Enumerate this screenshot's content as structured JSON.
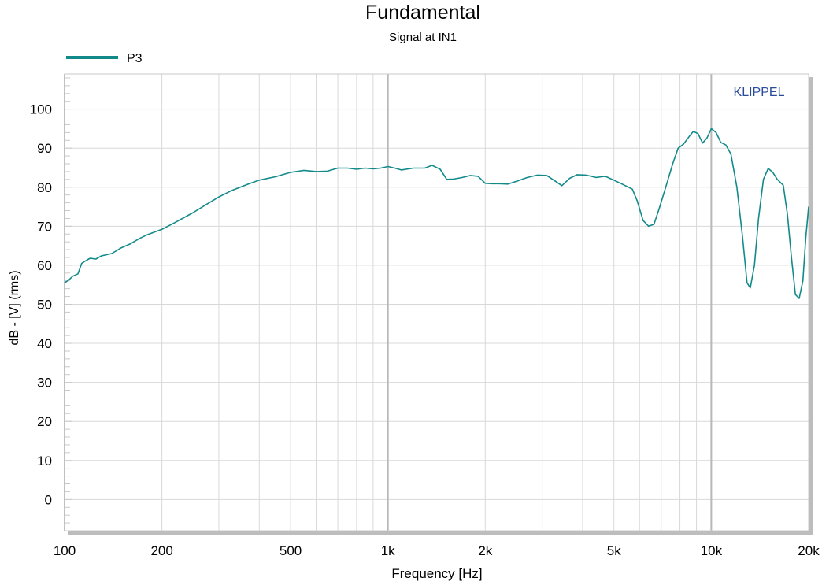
{
  "chart_data": {
    "type": "line",
    "title": "Fundamental",
    "subtitle": "Signal at IN1",
    "xlabel": "Frequency [Hz]",
    "ylabel": "dB - [V]  (rms)",
    "x_scale": "log",
    "xlim": [
      100,
      20000
    ],
    "ylim": [
      -8,
      109
    ],
    "grid": true,
    "watermark": "KLIPPEL",
    "legend_position": "top-left",
    "x_ticks": [
      {
        "value": 100,
        "label": "100"
      },
      {
        "value": 200,
        "label": "200"
      },
      {
        "value": 500,
        "label": "500"
      },
      {
        "value": 1000,
        "label": "1k"
      },
      {
        "value": 2000,
        "label": "2k"
      },
      {
        "value": 5000,
        "label": "5k"
      },
      {
        "value": 10000,
        "label": "10k"
      },
      {
        "value": 20000,
        "label": "20k"
      }
    ],
    "y_ticks": [
      0,
      10,
      20,
      30,
      40,
      50,
      60,
      70,
      80,
      90,
      100
    ],
    "colors": {
      "series": "#138a8a",
      "grid": "#d8d8d8",
      "grid_major": "#b8b8b8",
      "watermark": "#2a4a9a",
      "frame_shadow": "#bdbdbd"
    },
    "series": [
      {
        "name": "P3",
        "color": "#138a8a",
        "points": [
          [
            100,
            55.5
          ],
          [
            103,
            56.2
          ],
          [
            106,
            57.2
          ],
          [
            110,
            57.8
          ],
          [
            113,
            60.5
          ],
          [
            117,
            61.3
          ],
          [
            120,
            61.8
          ],
          [
            125,
            61.6
          ],
          [
            130,
            62.4
          ],
          [
            140,
            63.0
          ],
          [
            150,
            64.5
          ],
          [
            160,
            65.5
          ],
          [
            170,
            66.8
          ],
          [
            180,
            67.8
          ],
          [
            200,
            69.2
          ],
          [
            220,
            71.0
          ],
          [
            250,
            73.5
          ],
          [
            280,
            76.0
          ],
          [
            300,
            77.5
          ],
          [
            330,
            79.2
          ],
          [
            370,
            80.8
          ],
          [
            400,
            81.8
          ],
          [
            450,
            82.7
          ],
          [
            500,
            83.8
          ],
          [
            550,
            84.3
          ],
          [
            600,
            84.0
          ],
          [
            650,
            84.1
          ],
          [
            700,
            84.9
          ],
          [
            750,
            84.9
          ],
          [
            800,
            84.6
          ],
          [
            850,
            84.9
          ],
          [
            900,
            84.7
          ],
          [
            950,
            84.9
          ],
          [
            1000,
            85.3
          ],
          [
            1050,
            84.9
          ],
          [
            1100,
            84.4
          ],
          [
            1200,
            84.9
          ],
          [
            1300,
            84.9
          ],
          [
            1370,
            85.6
          ],
          [
            1450,
            84.6
          ],
          [
            1520,
            82.0
          ],
          [
            1600,
            82.1
          ],
          [
            1700,
            82.5
          ],
          [
            1800,
            83.0
          ],
          [
            1900,
            82.8
          ],
          [
            2000,
            81.0
          ],
          [
            2100,
            80.9
          ],
          [
            2200,
            80.9
          ],
          [
            2350,
            80.8
          ],
          [
            2500,
            81.5
          ],
          [
            2700,
            82.5
          ],
          [
            2900,
            83.1
          ],
          [
            3100,
            83.0
          ],
          [
            3300,
            81.5
          ],
          [
            3450,
            80.4
          ],
          [
            3650,
            82.3
          ],
          [
            3850,
            83.2
          ],
          [
            4100,
            83.1
          ],
          [
            4400,
            82.5
          ],
          [
            4700,
            82.8
          ],
          [
            5000,
            81.8
          ],
          [
            5300,
            80.8
          ],
          [
            5700,
            79.5
          ],
          [
            5900,
            76.5
          ],
          [
            6150,
            71.5
          ],
          [
            6400,
            70.0
          ],
          [
            6650,
            70.5
          ],
          [
            6900,
            74.5
          ],
          [
            7200,
            79.5
          ],
          [
            7600,
            86.0
          ],
          [
            7900,
            90.0
          ],
          [
            8200,
            91.0
          ],
          [
            8550,
            93.0
          ],
          [
            8800,
            94.3
          ],
          [
            9100,
            93.7
          ],
          [
            9400,
            91.3
          ],
          [
            9700,
            92.6
          ],
          [
            10000,
            95.0
          ],
          [
            10350,
            94.0
          ],
          [
            10700,
            91.5
          ],
          [
            11100,
            90.8
          ],
          [
            11500,
            88.5
          ],
          [
            12000,
            80.0
          ],
          [
            12500,
            67.0
          ],
          [
            12900,
            55.5
          ],
          [
            13200,
            54.2
          ],
          [
            13600,
            60.0
          ],
          [
            14000,
            72.0
          ],
          [
            14500,
            82.0
          ],
          [
            15000,
            84.8
          ],
          [
            15500,
            83.8
          ],
          [
            16000,
            82.0
          ],
          [
            16700,
            80.5
          ],
          [
            17200,
            73.0
          ],
          [
            17700,
            62.0
          ],
          [
            18200,
            52.5
          ],
          [
            18700,
            51.5
          ],
          [
            19200,
            56.0
          ],
          [
            19600,
            67.0
          ],
          [
            20000,
            75.0
          ]
        ]
      }
    ]
  }
}
